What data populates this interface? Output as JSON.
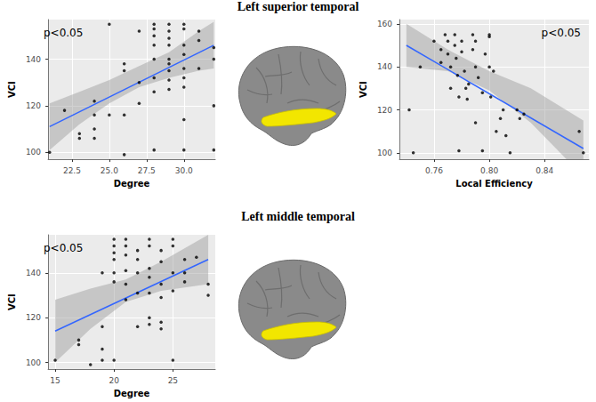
{
  "chart_data": [
    {
      "type": "scatter",
      "title": "Left superior temporal",
      "x_label": "Degree",
      "y_label": "VCI",
      "annotation": "p<0.05",
      "x": [
        21,
        22,
        23,
        23,
        24,
        24,
        24,
        24,
        25,
        25,
        26,
        26,
        26,
        26,
        27,
        27,
        27,
        28,
        28,
        28,
        28,
        28,
        28,
        28,
        28,
        29,
        29,
        29,
        29,
        29,
        29,
        29,
        29,
        29,
        30,
        30,
        30,
        30,
        30,
        30,
        30,
        30,
        30,
        31,
        31,
        31,
        32,
        32,
        32,
        32
      ],
      "values": [
        100,
        118,
        108,
        106,
        122,
        110,
        106,
        116,
        155,
        116,
        138,
        135,
        116,
        99,
        152,
        130,
        121,
        155,
        153,
        150,
        146,
        140,
        132,
        126,
        101,
        155,
        152,
        149,
        146,
        140,
        138,
        135,
        131,
        127,
        155,
        153,
        146,
        142,
        136,
        132,
        128,
        114,
        101,
        152,
        148,
        136,
        145,
        140,
        120,
        101
      ],
      "color": "#000000",
      "fit": {
        "x": [
          21,
          32
        ],
        "values": [
          111,
          146
        ],
        "color": "#3366ff"
      },
      "band": {
        "x": [
          21,
          23,
          25,
          27,
          29,
          31,
          32
        ],
        "lower": [
          101,
          112,
          121,
          128,
          132,
          135,
          136
        ],
        "upper": [
          121,
          126,
          131,
          137,
          143,
          152,
          156
        ],
        "color": "#999999"
      },
      "xlim": [
        20.9,
        32.1
      ],
      "ylim": [
        97,
        157
      ],
      "xticks": [
        22.5,
        {
          "value": 25,
          "label": "25.0"
        },
        27.5,
        {
          "value": 30,
          "label": "30.0"
        }
      ],
      "yticks": [
        100,
        120,
        140
      ],
      "grid": true
    },
    {
      "type": "scatter",
      "x_label": "Local Efficiency",
      "y_label": "VCI",
      "annotation": "p<0.05",
      "x": [
        0.742,
        0.745,
        0.75,
        0.76,
        0.765,
        0.765,
        0.768,
        0.77,
        0.77,
        0.772,
        0.772,
        0.775,
        0.775,
        0.776,
        0.777,
        0.778,
        0.778,
        0.78,
        0.78,
        0.782,
        0.783,
        0.784,
        0.785,
        0.788,
        0.788,
        0.79,
        0.79,
        0.79,
        0.792,
        0.795,
        0.795,
        0.797,
        0.8,
        0.8,
        0.8,
        0.801,
        0.803,
        0.805,
        0.808,
        0.81,
        0.812,
        0.815,
        0.82,
        0.822,
        0.825,
        0.865,
        0.868
      ],
      "values": [
        120,
        100,
        140,
        152,
        148,
        142,
        155,
        152,
        146,
        140,
        130,
        155,
        150,
        144,
        136,
        126,
        101,
        152,
        147,
        138,
        130,
        125,
        132,
        155,
        148,
        152,
        140,
        114,
        135,
        128,
        101,
        146,
        155,
        154,
        140,
        126,
        138,
        110,
        116,
        120,
        108,
        100,
        120,
        116,
        118,
        110,
        100
      ],
      "color": "#000000",
      "fit": {
        "x": [
          0.74,
          0.868
        ],
        "values": [
          150,
          102
        ],
        "color": "#3366ff"
      },
      "band": {
        "x": [
          0.74,
          0.77,
          0.8,
          0.83,
          0.868
        ],
        "lower": [
          140,
          138,
          129,
          114,
          89
        ],
        "upper": [
          160,
          148,
          138,
          130,
          115
        ],
        "color": "#999999"
      },
      "xlim": [
        0.735,
        0.872
      ],
      "ylim": [
        97,
        162
      ],
      "xticks": [
        0.76,
        {
          "value": 0.8,
          "label": "0.80"
        },
        0.84
      ],
      "yticks": [
        100,
        120,
        140,
        160
      ],
      "grid": true
    },
    {
      "type": "scatter",
      "title": "Left middle temporal",
      "x_label": "Degree",
      "y_label": "VCI",
      "annotation": "p<0.05",
      "x": [
        15,
        17,
        17,
        18,
        19,
        19,
        19,
        19,
        20,
        20,
        20,
        20,
        20,
        20,
        20,
        21,
        21,
        21,
        21,
        21,
        21,
        22,
        22,
        22,
        22,
        22,
        23,
        23,
        23,
        23,
        23,
        23,
        23,
        24,
        24,
        24,
        24,
        24,
        24,
        25,
        25,
        25,
        25,
        25,
        26,
        26,
        26,
        27,
        28,
        28
      ],
      "values": [
        101,
        108,
        110,
        99,
        101,
        106,
        140,
        116,
        155,
        152,
        149,
        146,
        140,
        136,
        101,
        155,
        152,
        148,
        141,
        135,
        128,
        150,
        146,
        140,
        131,
        116,
        155,
        152,
        142,
        138,
        131,
        120,
        117,
        150,
        145,
        135,
        129,
        118,
        115,
        155,
        152,
        140,
        132,
        101,
        146,
        140,
        136,
        147,
        135,
        130
      ],
      "color": "#000000",
      "fit": {
        "x": [
          15,
          28
        ],
        "values": [
          114,
          146
        ],
        "color": "#3366ff"
      },
      "band": {
        "x": [
          15,
          18,
          21,
          24,
          28
        ],
        "lower": [
          100,
          115,
          127,
          132,
          135
        ],
        "upper": [
          128,
          133,
          137,
          145,
          157
        ],
        "color": "#999999"
      },
      "xlim": [
        14.4,
        28.6
      ],
      "ylim": [
        97,
        157
      ],
      "xticks": [
        15,
        20,
        25
      ],
      "yticks": [
        100,
        120,
        140
      ],
      "grid": true
    }
  ]
}
